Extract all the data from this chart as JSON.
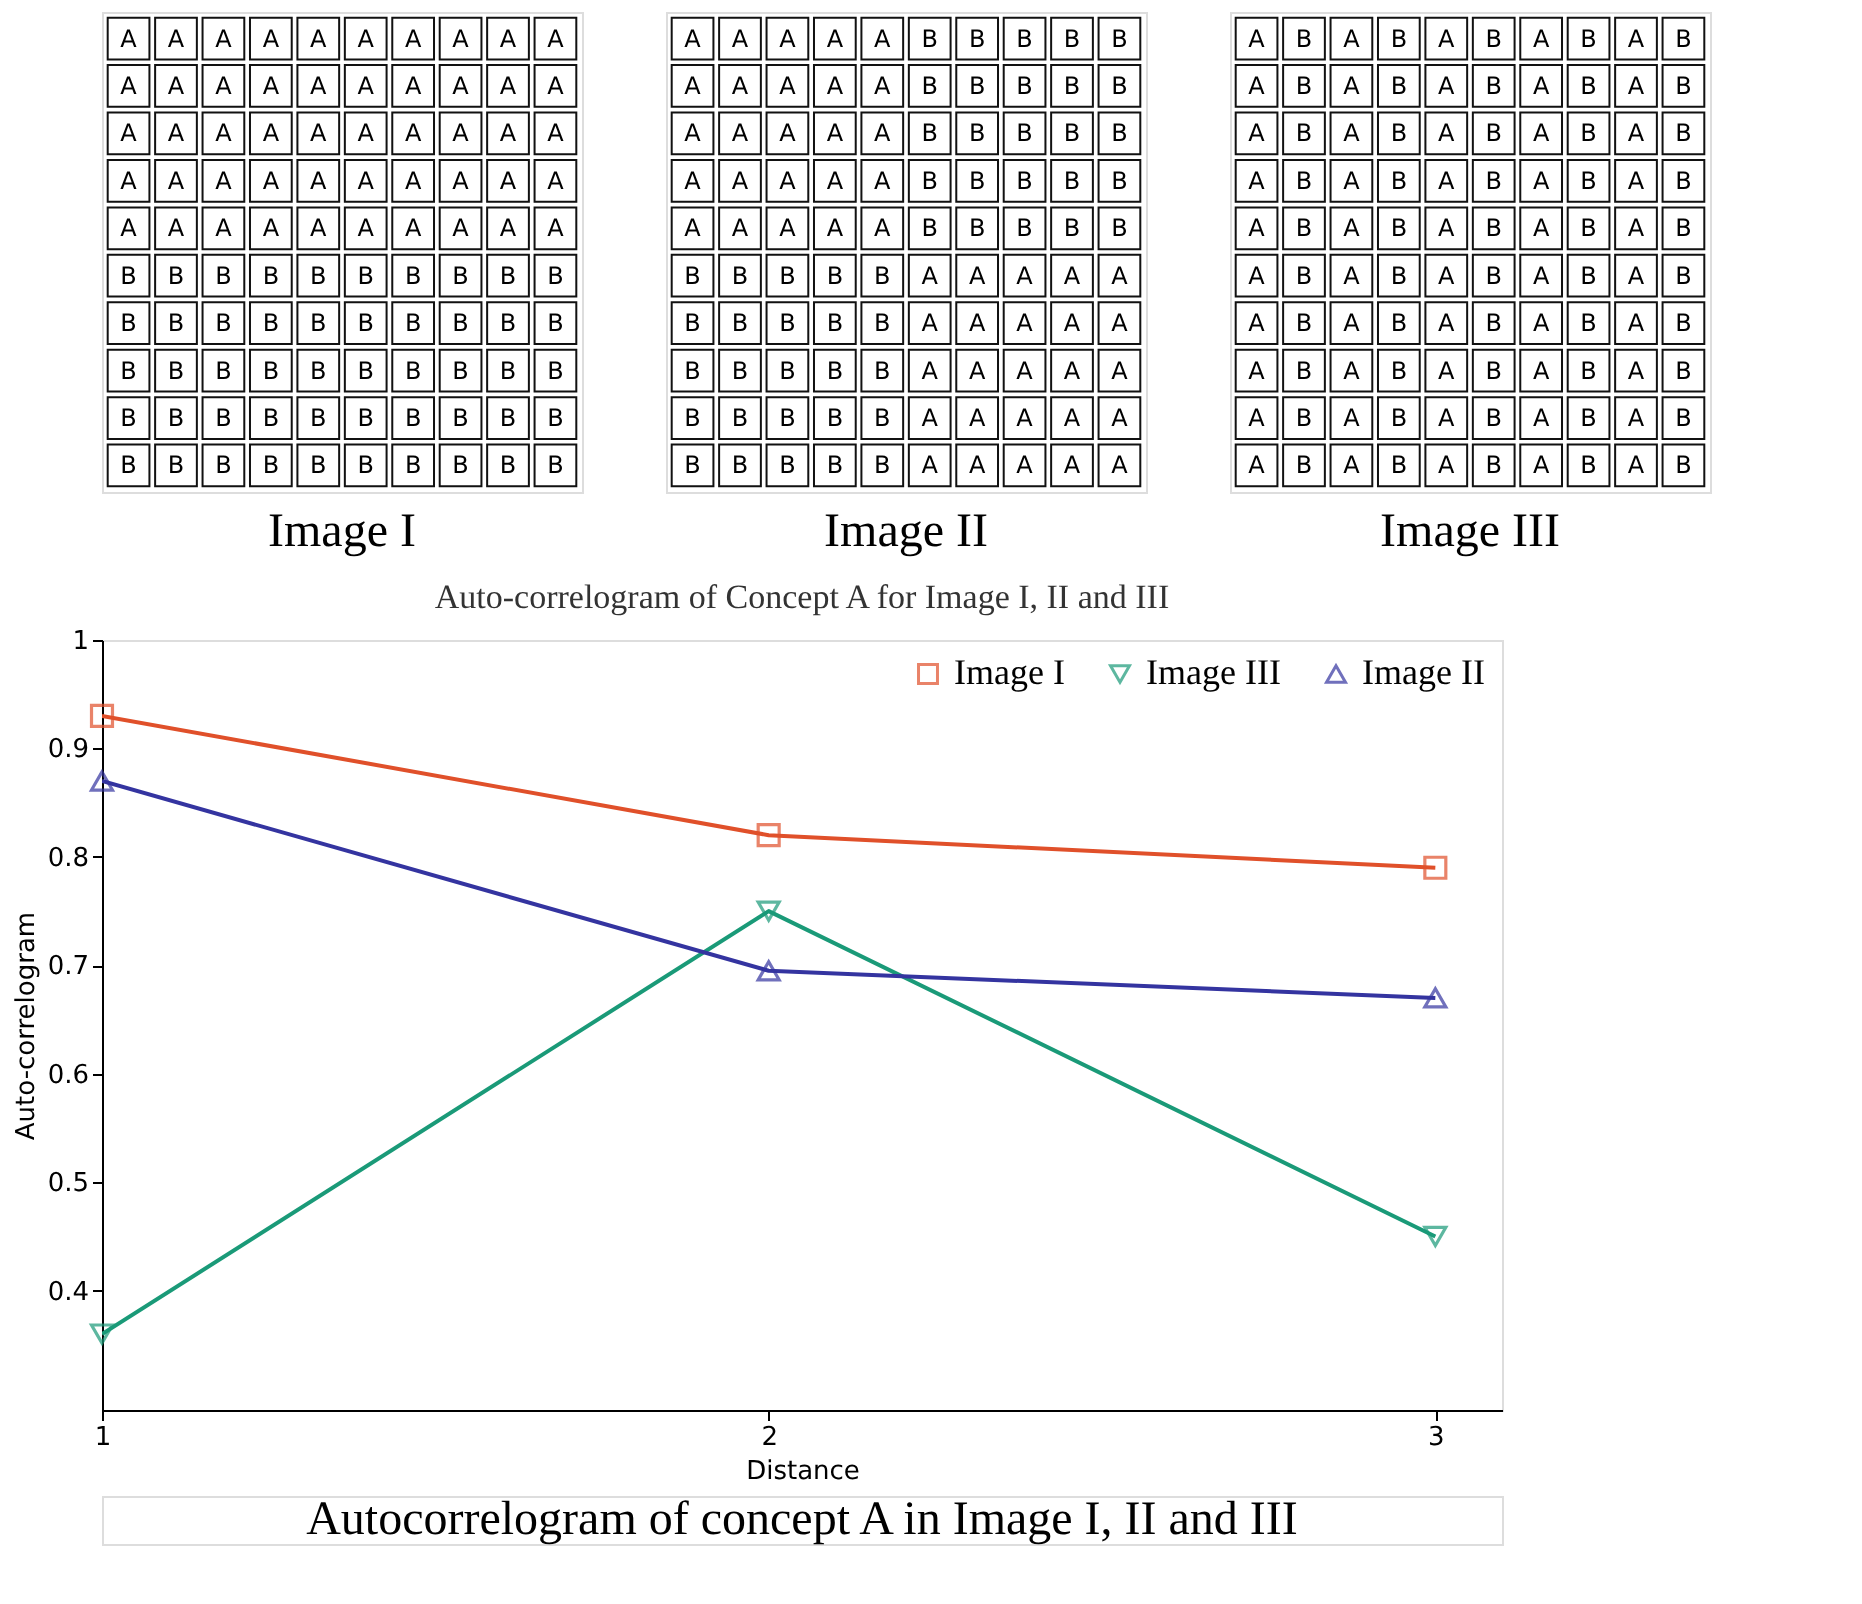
{
  "chart_data": [
    {
      "type": "other",
      "xlabel": "Image I",
      "cell_labels": [
        [
          "A",
          "A",
          "A",
          "A",
          "A",
          "A",
          "A",
          "A",
          "A",
          "A"
        ],
        [
          "A",
          "A",
          "A",
          "A",
          "A",
          "A",
          "A",
          "A",
          "A",
          "A"
        ],
        [
          "A",
          "A",
          "A",
          "A",
          "A",
          "A",
          "A",
          "A",
          "A",
          "A"
        ],
        [
          "A",
          "A",
          "A",
          "A",
          "A",
          "A",
          "A",
          "A",
          "A",
          "A"
        ],
        [
          "A",
          "A",
          "A",
          "A",
          "A",
          "A",
          "A",
          "A",
          "A",
          "A"
        ],
        [
          "B",
          "B",
          "B",
          "B",
          "B",
          "B",
          "B",
          "B",
          "B",
          "B"
        ],
        [
          "B",
          "B",
          "B",
          "B",
          "B",
          "B",
          "B",
          "B",
          "B",
          "B"
        ],
        [
          "B",
          "B",
          "B",
          "B",
          "B",
          "B",
          "B",
          "B",
          "B",
          "B"
        ],
        [
          "B",
          "B",
          "B",
          "B",
          "B",
          "B",
          "B",
          "B",
          "B",
          "B"
        ],
        [
          "B",
          "B",
          "B",
          "B",
          "B",
          "B",
          "B",
          "B",
          "B",
          "B"
        ]
      ]
    },
    {
      "type": "other",
      "xlabel": "Image II",
      "cell_labels": [
        [
          "A",
          "A",
          "A",
          "A",
          "A",
          "B",
          "B",
          "B",
          "B",
          "B"
        ],
        [
          "A",
          "A",
          "A",
          "A",
          "A",
          "B",
          "B",
          "B",
          "B",
          "B"
        ],
        [
          "A",
          "A",
          "A",
          "A",
          "A",
          "B",
          "B",
          "B",
          "B",
          "B"
        ],
        [
          "A",
          "A",
          "A",
          "A",
          "A",
          "B",
          "B",
          "B",
          "B",
          "B"
        ],
        [
          "A",
          "A",
          "A",
          "A",
          "A",
          "B",
          "B",
          "B",
          "B",
          "B"
        ],
        [
          "B",
          "B",
          "B",
          "B",
          "B",
          "A",
          "A",
          "A",
          "A",
          "A"
        ],
        [
          "B",
          "B",
          "B",
          "B",
          "B",
          "A",
          "A",
          "A",
          "A",
          "A"
        ],
        [
          "B",
          "B",
          "B",
          "B",
          "B",
          "A",
          "A",
          "A",
          "A",
          "A"
        ],
        [
          "B",
          "B",
          "B",
          "B",
          "B",
          "A",
          "A",
          "A",
          "A",
          "A"
        ],
        [
          "B",
          "B",
          "B",
          "B",
          "B",
          "A",
          "A",
          "A",
          "A",
          "A"
        ]
      ]
    },
    {
      "type": "other",
      "xlabel": "Image III",
      "cell_labels": [
        [
          "A",
          "B",
          "A",
          "B",
          "A",
          "B",
          "A",
          "B",
          "A",
          "B"
        ],
        [
          "A",
          "B",
          "A",
          "B",
          "A",
          "B",
          "A",
          "B",
          "A",
          "B"
        ],
        [
          "A",
          "B",
          "A",
          "B",
          "A",
          "B",
          "A",
          "B",
          "A",
          "B"
        ],
        [
          "A",
          "B",
          "A",
          "B",
          "A",
          "B",
          "A",
          "B",
          "A",
          "B"
        ],
        [
          "A",
          "B",
          "A",
          "B",
          "A",
          "B",
          "A",
          "B",
          "A",
          "B"
        ],
        [
          "A",
          "B",
          "A",
          "B",
          "A",
          "B",
          "A",
          "B",
          "A",
          "B"
        ],
        [
          "A",
          "B",
          "A",
          "B",
          "A",
          "B",
          "A",
          "B",
          "A",
          "B"
        ],
        [
          "A",
          "B",
          "A",
          "B",
          "A",
          "B",
          "A",
          "B",
          "A",
          "B"
        ],
        [
          "A",
          "B",
          "A",
          "B",
          "A",
          "B",
          "A",
          "B",
          "A",
          "B"
        ],
        [
          "A",
          "B",
          "A",
          "B",
          "A",
          "B",
          "A",
          "B",
          "A",
          "B"
        ]
      ]
    },
    {
      "type": "line",
      "title": "Auto-correlogram of Concept A for Image I, II and III",
      "xlabel": "Distance",
      "ylabel": "Auto-correlogram",
      "x": [
        1,
        2,
        3
      ],
      "series": [
        {
          "name": "Image I",
          "color": "#e0502a",
          "marker": "square",
          "values": [
            0.93,
            0.82,
            0.79
          ]
        },
        {
          "name": "Image III",
          "color": "#1a9a78",
          "marker": "triangle-down",
          "values": [
            0.36,
            0.75,
            0.45
          ]
        },
        {
          "name": "Image II",
          "color": "#3434a0",
          "marker": "triangle",
          "values": [
            0.87,
            0.695,
            0.67
          ]
        }
      ],
      "xlim": [
        1,
        3.1
      ],
      "xticks": [
        1,
        2,
        3
      ],
      "ylim": [
        0.29,
        1
      ],
      "yticks": [
        0.4,
        0.5,
        0.6,
        0.7,
        0.8,
        0.9,
        1
      ],
      "grid": false,
      "legend": "top",
      "line_style": "solid",
      "annotations": [
        "Autocorrelogram of concept A in Image I, II and III"
      ]
    }
  ]
}
